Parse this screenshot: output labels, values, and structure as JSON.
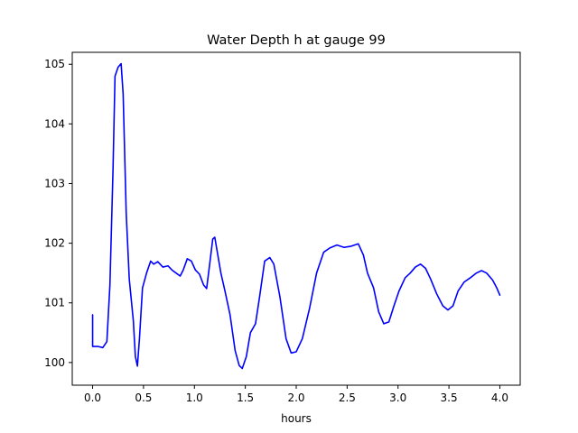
{
  "chart_data": {
    "type": "line",
    "title": "Water Depth h at gauge 99",
    "xlabel": "hours",
    "ylabel": "",
    "xlim": [
      -0.2,
      4.2
    ],
    "ylim": [
      99.62,
      105.2
    ],
    "grid": false,
    "xticks": [
      0.0,
      0.5,
      1.0,
      1.5,
      2.0,
      2.5,
      3.0,
      3.5,
      4.0
    ],
    "xtick_labels": [
      "0.0",
      "0.5",
      "1.0",
      "1.5",
      "2.0",
      "2.5",
      "3.0",
      "3.5",
      "4.0"
    ],
    "yticks": [
      100,
      101,
      102,
      103,
      104,
      105
    ],
    "ytick_labels": [
      "100",
      "101",
      "102",
      "103",
      "104",
      "105"
    ],
    "series": [
      {
        "color": "#0000ff",
        "points": [
          [
            0.0,
            100.8
          ],
          [
            0.0,
            100.27
          ],
          [
            0.05,
            100.27
          ],
          [
            0.1,
            100.25
          ],
          [
            0.14,
            100.35
          ],
          [
            0.17,
            101.3
          ],
          [
            0.2,
            103.2
          ],
          [
            0.22,
            104.8
          ],
          [
            0.25,
            104.95
          ],
          [
            0.28,
            105.01
          ],
          [
            0.3,
            104.5
          ],
          [
            0.33,
            102.5
          ],
          [
            0.36,
            101.4
          ],
          [
            0.4,
            100.7
          ],
          [
            0.42,
            100.1
          ],
          [
            0.44,
            99.94
          ],
          [
            0.46,
            100.4
          ],
          [
            0.49,
            101.25
          ],
          [
            0.53,
            101.5
          ],
          [
            0.57,
            101.7
          ],
          [
            0.6,
            101.65
          ],
          [
            0.64,
            101.69
          ],
          [
            0.69,
            101.6
          ],
          [
            0.74,
            101.62
          ],
          [
            0.78,
            101.55
          ],
          [
            0.82,
            101.5
          ],
          [
            0.86,
            101.45
          ],
          [
            0.89,
            101.55
          ],
          [
            0.93,
            101.74
          ],
          [
            0.97,
            101.7
          ],
          [
            1.01,
            101.55
          ],
          [
            1.05,
            101.48
          ],
          [
            1.09,
            101.3
          ],
          [
            1.12,
            101.24
          ],
          [
            1.15,
            101.65
          ],
          [
            1.18,
            102.07
          ],
          [
            1.2,
            102.1
          ],
          [
            1.23,
            101.8
          ],
          [
            1.26,
            101.5
          ],
          [
            1.3,
            101.2
          ],
          [
            1.35,
            100.8
          ],
          [
            1.4,
            100.2
          ],
          [
            1.44,
            99.95
          ],
          [
            1.47,
            99.9
          ],
          [
            1.51,
            100.1
          ],
          [
            1.55,
            100.5
          ],
          [
            1.6,
            100.65
          ],
          [
            1.64,
            101.1
          ],
          [
            1.69,
            101.7
          ],
          [
            1.74,
            101.76
          ],
          [
            1.78,
            101.65
          ],
          [
            1.84,
            101.1
          ],
          [
            1.9,
            100.4
          ],
          [
            1.95,
            100.16
          ],
          [
            2.0,
            100.18
          ],
          [
            2.06,
            100.4
          ],
          [
            2.13,
            100.9
          ],
          [
            2.2,
            101.5
          ],
          [
            2.27,
            101.85
          ],
          [
            2.33,
            101.92
          ],
          [
            2.4,
            101.97
          ],
          [
            2.47,
            101.93
          ],
          [
            2.54,
            101.95
          ],
          [
            2.61,
            101.99
          ],
          [
            2.66,
            101.8
          ],
          [
            2.7,
            101.5
          ],
          [
            2.76,
            101.25
          ],
          [
            2.81,
            100.85
          ],
          [
            2.86,
            100.65
          ],
          [
            2.91,
            100.68
          ],
          [
            2.96,
            100.95
          ],
          [
            3.01,
            101.2
          ],
          [
            3.07,
            101.42
          ],
          [
            3.12,
            101.5
          ],
          [
            3.17,
            101.6
          ],
          [
            3.22,
            101.65
          ],
          [
            3.27,
            101.58
          ],
          [
            3.32,
            101.4
          ],
          [
            3.38,
            101.15
          ],
          [
            3.44,
            100.95
          ],
          [
            3.49,
            100.88
          ],
          [
            3.54,
            100.95
          ],
          [
            3.59,
            101.2
          ],
          [
            3.65,
            101.35
          ],
          [
            3.71,
            101.42
          ],
          [
            3.77,
            101.5
          ],
          [
            3.82,
            101.54
          ],
          [
            3.87,
            101.5
          ],
          [
            3.93,
            101.38
          ],
          [
            3.97,
            101.25
          ],
          [
            4.0,
            101.13
          ]
        ]
      }
    ]
  }
}
